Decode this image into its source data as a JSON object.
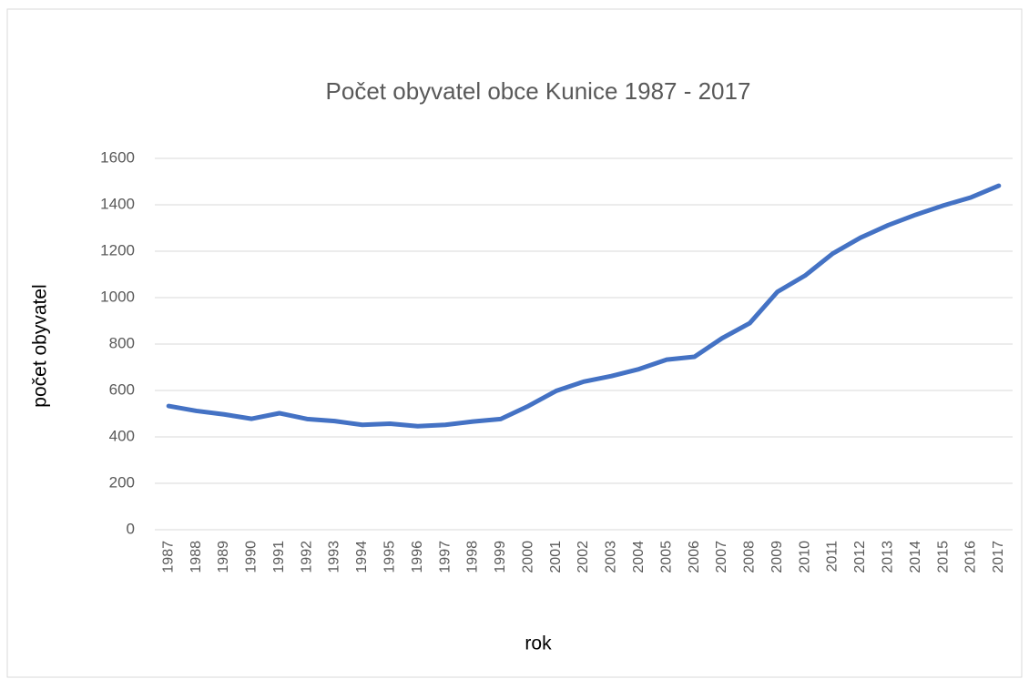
{
  "chart_data": {
    "type": "line",
    "title": "Počet obyvatel obce Kunice 1987 - 2017",
    "x_label": "rok",
    "y_label": "počet obyvatel",
    "categories": [
      "1987",
      "1988",
      "1989",
      "1990",
      "1991",
      "1992",
      "1993",
      "1994",
      "1995",
      "1996",
      "1997",
      "1998",
      "1999",
      "2000",
      "2001",
      "2002",
      "2003",
      "2004",
      "2005",
      "2006",
      "2007",
      "2008",
      "2009",
      "2010",
      "2011",
      "2012",
      "2013",
      "2014",
      "2015",
      "2016",
      "2017"
    ],
    "series": [
      {
        "name": "počet obyvatel",
        "color": "#4472c4",
        "values": [
          533,
          512,
          497,
          478,
          502,
          477,
          468,
          452,
          457,
          446,
          452,
          466,
          477,
          533,
          598,
          638,
          662,
          692,
          733,
          745,
          825,
          890,
          1025,
          1095,
          1190,
          1258,
          1312,
          1357,
          1397,
          1432,
          1482
        ]
      }
    ],
    "ylim": [
      0,
      1600
    ],
    "yticks": [
      0,
      200,
      400,
      600,
      800,
      1000,
      1200,
      1400,
      1600
    ],
    "grid": true
  }
}
